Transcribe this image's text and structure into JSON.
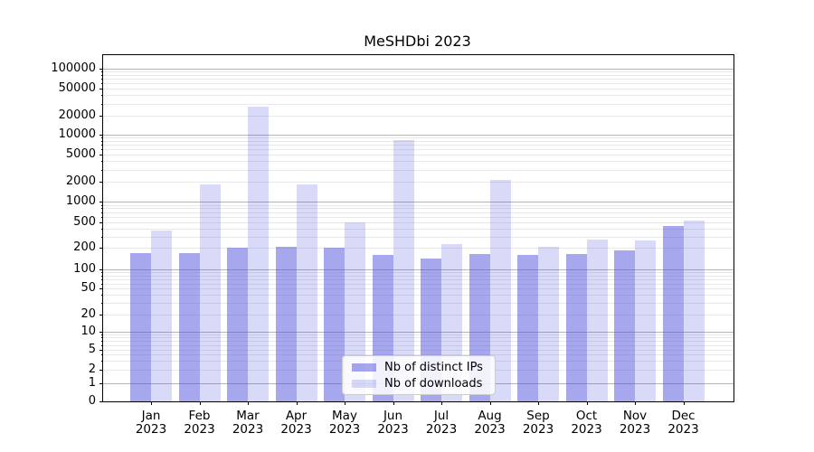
{
  "title": "MeSHDbi 2023",
  "legend": {
    "items": [
      {
        "label": "Nb of distinct IPs",
        "color": "rgba(76,76,220,0.49)"
      },
      {
        "label": "Nb of downloads",
        "color": "rgba(76,76,220,0.21)"
      }
    ]
  },
  "x_axis": {
    "months": [
      "Jan",
      "Feb",
      "Mar",
      "Apr",
      "May",
      "Jun",
      "Jul",
      "Aug",
      "Sep",
      "Oct",
      "Nov",
      "Dec"
    ],
    "year": "2023"
  },
  "y_axis": {
    "tick_labels": [
      "0",
      "1",
      "2",
      "5",
      "10",
      "20",
      "50",
      "100",
      "200",
      "500",
      "1000",
      "2000",
      "5000",
      "10000",
      "20000",
      "50000",
      "100000"
    ]
  },
  "colors": {
    "series_ips": "rgba(76,76,220,0.49)",
    "series_downloads": "rgba(76,76,220,0.21)",
    "grid_major": "#b4b4b4",
    "grid_minor": "#e8e8e8",
    "axis": "#000000"
  },
  "chart_data": {
    "type": "bar",
    "title": "MeSHDbi 2023",
    "categories": [
      "Jan 2023",
      "Feb 2023",
      "Mar 2023",
      "Apr 2023",
      "May 2023",
      "Jun 2023",
      "Jul 2023",
      "Aug 2023",
      "Sep 2023",
      "Oct 2023",
      "Nov 2023",
      "Dec 2023"
    ],
    "series": [
      {
        "name": "Nb of distinct IPs",
        "values": [
          170,
          170,
          200,
          210,
          200,
          160,
          140,
          165,
          160,
          165,
          185,
          440
        ]
      },
      {
        "name": "Nb of downloads",
        "values": [
          370,
          1850,
          27500,
          1800,
          500,
          8300,
          230,
          2100,
          210,
          270,
          260,
          530
        ]
      }
    ],
    "xlabel": "",
    "ylabel": "",
    "yscale": "symlog",
    "yticks": [
      0,
      1,
      2,
      5,
      10,
      20,
      50,
      100,
      200,
      500,
      1000,
      2000,
      5000,
      10000,
      20000,
      50000,
      100000
    ],
    "ylim": [
      0,
      160000
    ],
    "grid": true,
    "legend_position": "lower center"
  }
}
